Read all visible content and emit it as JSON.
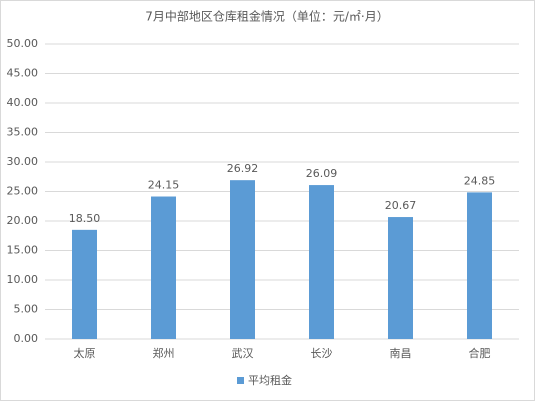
{
  "chart_data": {
    "type": "bar",
    "title": "7月中部地区仓库租金情况（单位：元/㎡·月）",
    "categories": [
      "太原",
      "郑州",
      "武汉",
      "长沙",
      "南昌",
      "合肥"
    ],
    "series": [
      {
        "name": "平均租金",
        "color": "#5b9bd5",
        "values": [
          18.5,
          24.15,
          26.92,
          26.09,
          20.67,
          24.85
        ],
        "value_labels": [
          "18.50",
          "24.15",
          "26.92",
          "26.09",
          "20.67",
          "24.85"
        ]
      }
    ],
    "ylim": [
      0,
      50
    ],
    "yticks": [
      {
        "value": 0,
        "label": "0.00"
      },
      {
        "value": 5,
        "label": "5.00"
      },
      {
        "value": 10,
        "label": "10.00"
      },
      {
        "value": 15,
        "label": "15.00"
      },
      {
        "value": 20,
        "label": "20.00"
      },
      {
        "value": 25,
        "label": "25.00"
      },
      {
        "value": 30,
        "label": "30.00"
      },
      {
        "value": 35,
        "label": "35.00"
      },
      {
        "value": 40,
        "label": "40.00"
      },
      {
        "value": 45,
        "label": "45.00"
      },
      {
        "value": 50,
        "label": "50.00"
      }
    ],
    "grid": true,
    "legend": "bottom"
  }
}
